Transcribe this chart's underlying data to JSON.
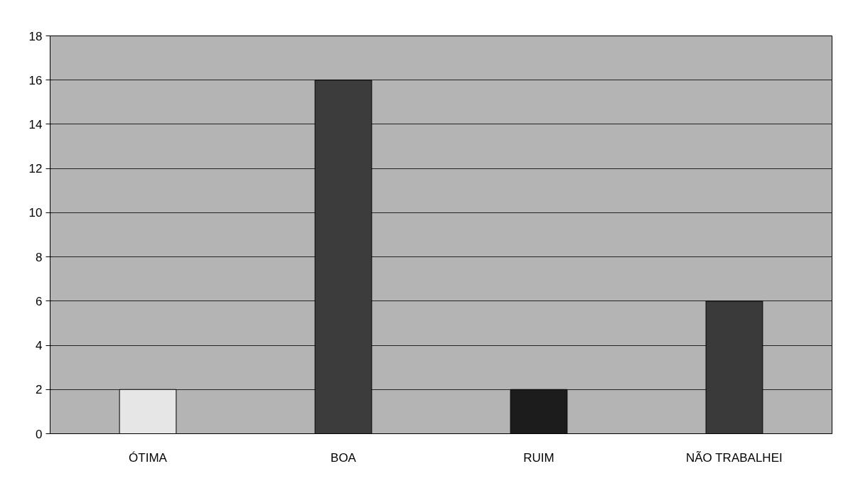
{
  "chart_data": {
    "type": "bar",
    "categories": [
      "ÓTIMA",
      "BOA",
      "RUIM",
      "NÃO TRABALHEI"
    ],
    "values": [
      2,
      16,
      2,
      6
    ],
    "colors": [
      "#e6e6e6",
      "#3c3c3c",
      "#1c1c1c",
      "#3a3a3a"
    ],
    "ylim": [
      0,
      18
    ],
    "yticks": [
      0,
      2,
      4,
      6,
      8,
      10,
      12,
      14,
      16,
      18
    ],
    "grid": "y"
  }
}
